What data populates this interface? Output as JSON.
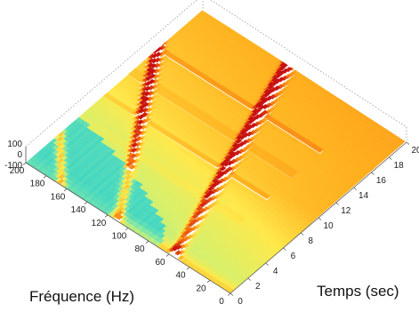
{
  "chart_data": {
    "type": "surface",
    "title": "",
    "xlabel": "Fréquence (Hz)",
    "ylabel": "Temps (sec)",
    "zlabel": "",
    "xlim": [
      0,
      200
    ],
    "ylim": [
      0,
      20
    ],
    "zlim": [
      -100,
      100
    ],
    "x_ticks": [
      "0",
      "20",
      "40",
      "60",
      "80",
      "100",
      "120",
      "140",
      "160",
      "180",
      "200"
    ],
    "y_ticks": [
      "0",
      "2",
      "4",
      "6",
      "8",
      "10",
      "12",
      "14",
      "16",
      "18",
      "20"
    ],
    "z_ticks": [
      "100",
      "0",
      "-100"
    ],
    "colormap": [
      "#3fd6c4",
      "#7fe6a8",
      "#d8f06a",
      "#ffe84a",
      "#ffb21e",
      "#f47010",
      "#c81212"
    ],
    "ridges": [
      {
        "name": "",
        "f0_hz": 55,
        "slope_hz_per_sec": 3.0
      },
      {
        "name": "",
        "f0_hz": 110,
        "slope_hz_per_sec": 6.0
      },
      {
        "name": "",
        "f0_hz": 165,
        "slope_hz_per_sec": 9.0
      }
    ],
    "grid": false
  }
}
